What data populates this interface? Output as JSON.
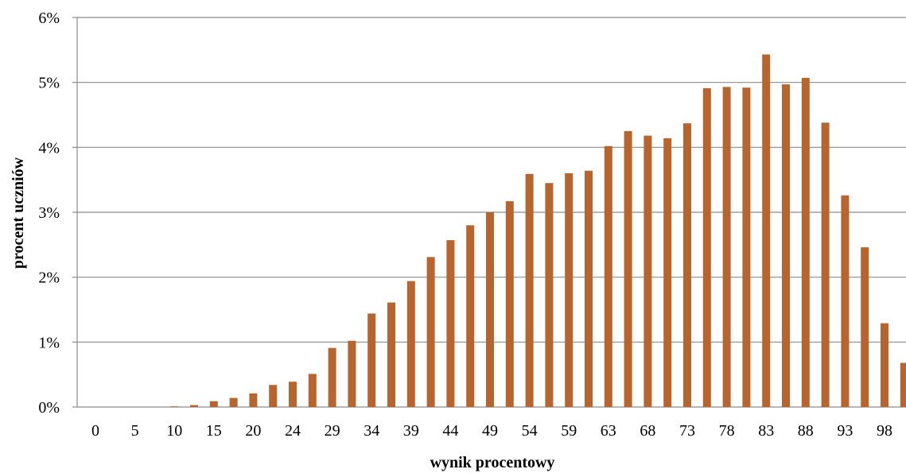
{
  "chart_data": {
    "type": "bar",
    "title": "",
    "xlabel": "wynik procentowy",
    "ylabel": "procent uczniów",
    "ylim": [
      0,
      6
    ],
    "y_unit": "%",
    "y_ticks": [
      "0%",
      "1%",
      "2%",
      "3%",
      "4%",
      "5%",
      "6%"
    ],
    "x_tick_labels": [
      "0",
      "5",
      "10",
      "15",
      "20",
      "24",
      "29",
      "34",
      "39",
      "44",
      "49",
      "54",
      "59",
      "63",
      "68",
      "73",
      "78",
      "83",
      "88",
      "93",
      "98"
    ],
    "grid": true,
    "legend": "none",
    "bar_color": "#B8642F",
    "categories": [
      "0",
      "2",
      "5",
      "7",
      "10",
      "12",
      "15",
      "17",
      "20",
      "22",
      "24",
      "27",
      "29",
      "32",
      "34",
      "37",
      "39",
      "41",
      "44",
      "46",
      "49",
      "51",
      "54",
      "56",
      "59",
      "61",
      "63",
      "66",
      "68",
      "71",
      "73",
      "76",
      "78",
      "80",
      "83",
      "85",
      "88",
      "90",
      "93",
      "95",
      "98",
      "100"
    ],
    "values": [
      0,
      0,
      0,
      0,
      0.01,
      0.03,
      0.09,
      0.14,
      0.21,
      0.34,
      0.39,
      0.51,
      0.91,
      1.02,
      1.44,
      1.61,
      1.94,
      2.31,
      2.57,
      2.8,
      3.0,
      3.17,
      3.59,
      3.45,
      3.6,
      3.64,
      4.02,
      4.25,
      4.18,
      4.14,
      4.37,
      4.91,
      4.93,
      4.92,
      5.43,
      4.97,
      5.07,
      4.38,
      3.26,
      2.46,
      1.29,
      0.68
    ]
  }
}
